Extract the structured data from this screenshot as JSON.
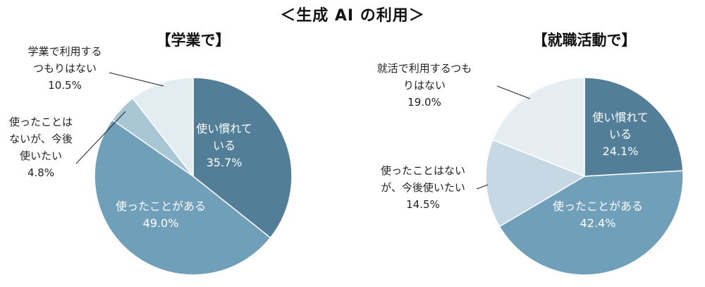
{
  "title": "＜生成 AI の利用＞",
  "chart_data": [
    {
      "type": "pie",
      "title": "【学業で】",
      "slices": [
        {
          "label": "使い慣れている",
          "lines": [
            "使い慣れて",
            "いる"
          ],
          "value": 35.7,
          "value_text": "35.7%",
          "color": "#537e98",
          "label_inside": true
        },
        {
          "label": "使ったことがある",
          "lines": [
            "使ったことがある"
          ],
          "value": 49.0,
          "value_text": "49.0%",
          "color": "#709fba",
          "label_inside": true
        },
        {
          "label": "使ったことはないが、今後使いたい",
          "lines": [
            "使ったことは",
            "ないが、今後",
            "使いたい"
          ],
          "value": 4.8,
          "value_text": "4.8%",
          "color": "#a9c6d5",
          "label_inside": false
        },
        {
          "label": "学業で利用するつもりはない",
          "lines": [
            "学業で利用する",
            "つもりはない"
          ],
          "value": 10.5,
          "value_text": "10.5%",
          "color": "#e3ecf1",
          "label_inside": false
        }
      ]
    },
    {
      "type": "pie",
      "title": "【就職活動で】",
      "slices": [
        {
          "label": "使い慣れている",
          "lines": [
            "使い慣れて",
            "いる"
          ],
          "value": 24.1,
          "value_text": "24.1%",
          "color": "#537e98",
          "label_inside": true
        },
        {
          "label": "使ったことがある",
          "lines": [
            "使ったことがある"
          ],
          "value": 42.4,
          "value_text": "42.4%",
          "color": "#709fba",
          "label_inside": true
        },
        {
          "label": "使ったことはないが、今後使いたい",
          "lines": [
            "使ったことはない",
            "が、今後使いたい"
          ],
          "value": 14.5,
          "value_text": "14.5%",
          "color": "#c5d8e3",
          "label_inside": false
        },
        {
          "label": "就活で利用するつもりはない",
          "lines": [
            "就活で利用するつも",
            "りはない"
          ],
          "value": 19.0,
          "value_text": "19.0%",
          "color": "#e6eef2",
          "label_inside": false
        }
      ]
    }
  ]
}
